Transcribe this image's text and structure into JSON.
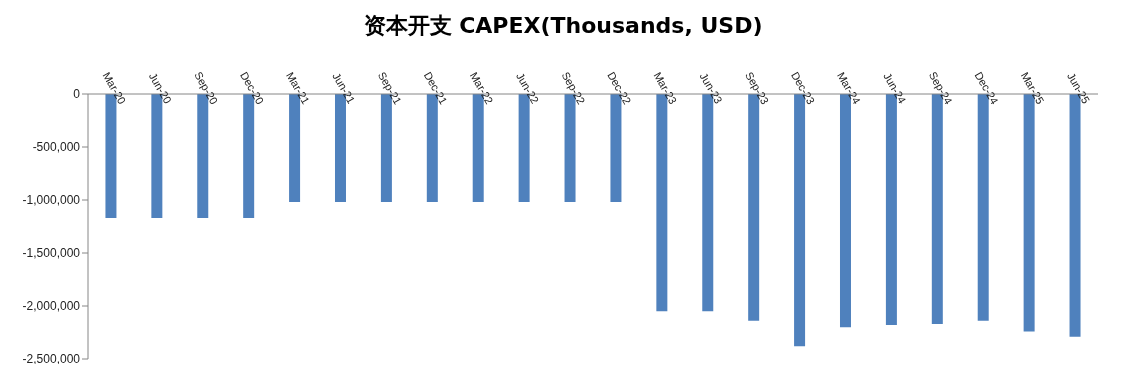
{
  "chart_data": {
    "type": "bar",
    "title": "资本开支 CAPEX(Thousands, USD)",
    "categories": [
      "Mar-20",
      "Jun-20",
      "Sep-20",
      "Dec-20",
      "Mar-21",
      "Jun-21",
      "Sep-21",
      "Dec-21",
      "Mar-22",
      "Jun-22",
      "Sep-22",
      "Dec-22",
      "Mar-23",
      "Jun-23",
      "Sep-23",
      "Dec-23",
      "Mar-24",
      "Jun-24",
      "Sep-24",
      "Dec-24",
      "Mar-25",
      "Jun-25"
    ],
    "values": [
      -1170000,
      -1170000,
      -1170000,
      -1170000,
      -1020000,
      -1020000,
      -1020000,
      -1020000,
      -1020000,
      -1020000,
      -1020000,
      -1020000,
      -2050000,
      -2050000,
      -2140000,
      -2380000,
      -2200000,
      -2180000,
      -2170000,
      -2140000,
      -2240000,
      -2290000
    ],
    "color": "#4f81bd",
    "ylim": [
      -2500000,
      0
    ],
    "yticks": [
      {
        "value": -2500000,
        "label": "-2,500,000"
      },
      {
        "value": -2000000,
        "label": "-2,000,000"
      },
      {
        "value": -1500000,
        "label": "-1,500,000"
      },
      {
        "value": -1000000,
        "label": "-1,000,000"
      },
      {
        "value": -500000,
        "label": "-500,000"
      },
      0
    ]
  }
}
